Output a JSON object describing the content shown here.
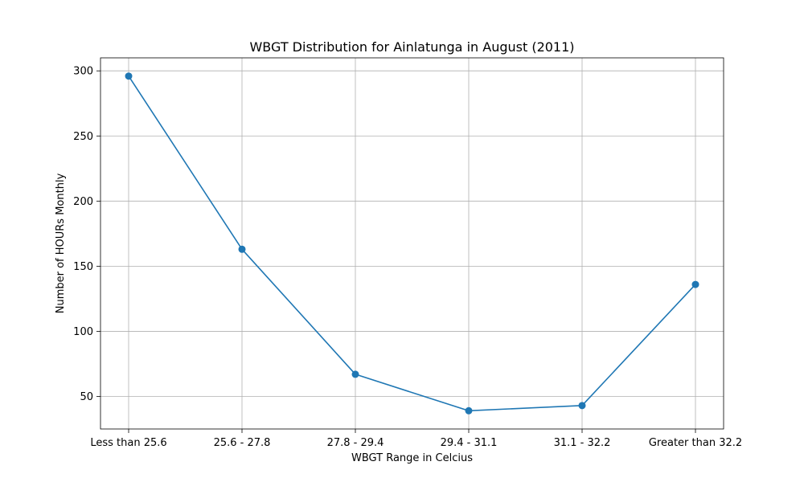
{
  "chart_data": {
    "type": "line",
    "title": "WBGT Distribution for Ainlatunga in August (2011)",
    "xlabel": "WBGT Range in Celcius",
    "ylabel": "Number of HOURs Monthly",
    "categories": [
      "Less than 25.6",
      "25.6 - 27.8",
      "27.8 - 29.4",
      "29.4 - 31.1",
      "31.1 - 32.2",
      "Greater than 32.2"
    ],
    "series": [
      {
        "values": [
          296,
          163,
          67,
          39,
          43,
          136
        ],
        "color": "#1f77b4",
        "marker": "circle"
      }
    ],
    "ylim": [
      25,
      310
    ],
    "yticks": [
      50,
      100,
      150,
      200,
      250,
      300
    ],
    "grid": true
  }
}
